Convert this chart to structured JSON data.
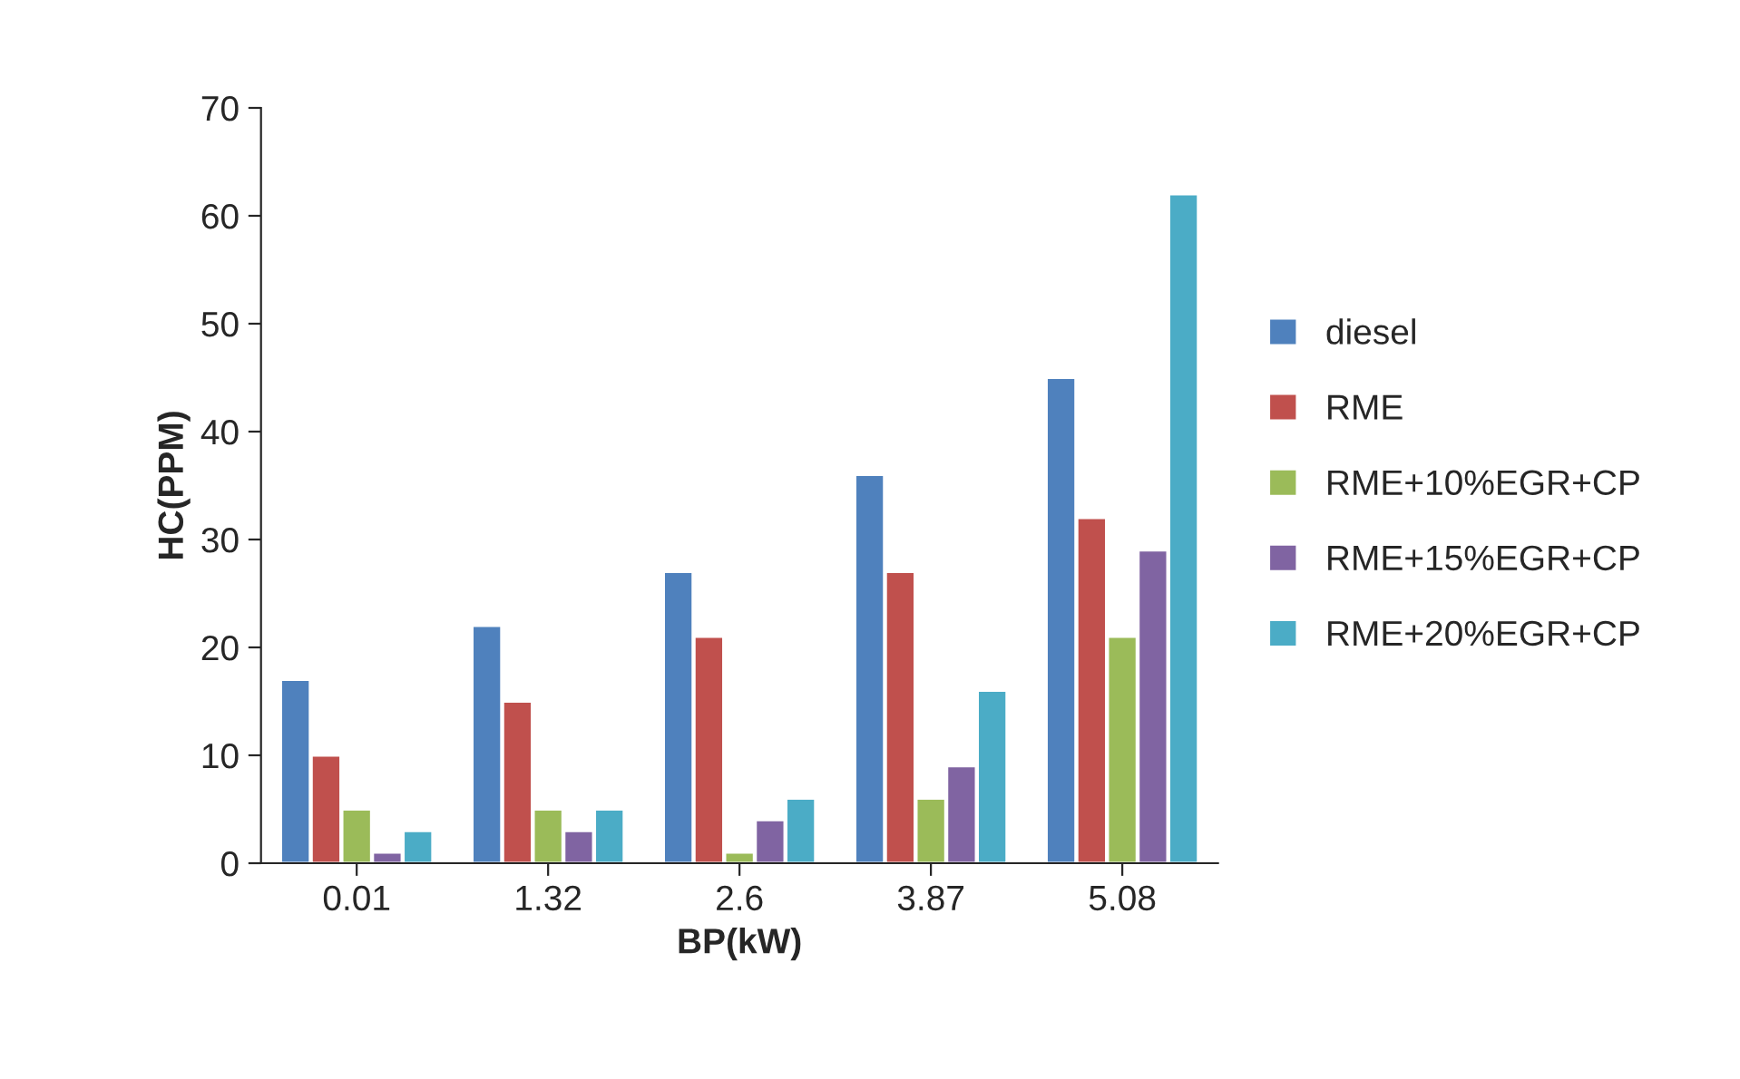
{
  "chart_data": {
    "type": "bar",
    "xlabel": "BP(kW)",
    "ylabel": "HC(PPM)",
    "categories": [
      "0.01",
      "1.32",
      "2.6",
      "3.87",
      "5.08"
    ],
    "series": [
      {
        "name": "diesel",
        "color": "#4f81bd",
        "values": [
          17,
          22,
          27,
          36,
          45
        ]
      },
      {
        "name": "RME",
        "color": "#c0504d",
        "values": [
          10,
          15,
          21,
          27,
          32
        ]
      },
      {
        "name": "RME+10%EGR+CP",
        "color": "#9bbb59",
        "values": [
          5,
          5,
          1,
          6,
          21
        ]
      },
      {
        "name": "RME+15%EGR+CP",
        "color": "#8064a2",
        "values": [
          1,
          3,
          4,
          9,
          29
        ]
      },
      {
        "name": "RME+20%EGR+CP",
        "color": "#4bacc6",
        "values": [
          3,
          5,
          6,
          16,
          62
        ]
      }
    ],
    "ylim": [
      0,
      70
    ],
    "yticks": [
      0,
      10,
      20,
      30,
      40,
      50,
      60,
      70
    ],
    "grid": false,
    "legend": "right"
  }
}
